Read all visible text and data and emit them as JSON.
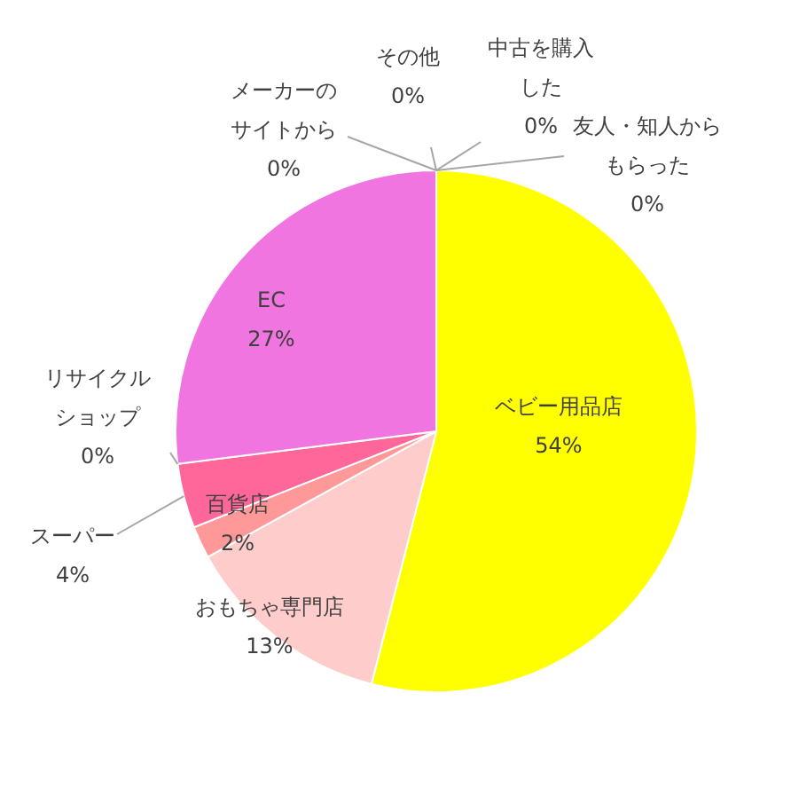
{
  "chart_data": {
    "type": "pie",
    "categories": [
      "ベビー用品店",
      "おもちゃ専門店",
      "百貨店",
      "スーパー",
      "リサイクルショップ",
      "EC",
      "メーカーのサイトから",
      "その他",
      "中古を購入した",
      "友人・知人からもらった"
    ],
    "values": [
      54,
      13,
      2,
      4,
      0,
      27,
      0,
      0,
      0,
      0
    ],
    "value_labels": [
      "54%",
      "13%",
      "2%",
      "4%",
      "0%",
      "27%",
      "0%",
      "0%",
      "0%",
      "0%"
    ],
    "colors": [
      "#ffff00",
      "#ffcccc",
      "#ff9999",
      "#ff6699",
      "#ff3399",
      "#f075e0",
      "#cc66cc",
      "#cc99ff",
      "#9999ff",
      "#66ccff"
    ],
    "legend": false
  }
}
